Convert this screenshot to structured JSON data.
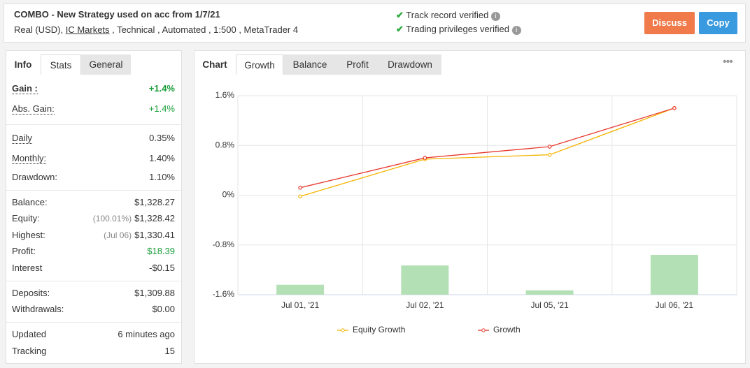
{
  "header": {
    "title": "COMBO - New Strategy used on acc from 1/7/21",
    "account": "Real (USD),",
    "broker": "IC Markets",
    "details": ", Technical , Automated , 1:500 , MetaTrader 4",
    "verified": [
      "Track record verified",
      "Trading privileges verified"
    ],
    "buttons": [
      "Discuss",
      "Copy"
    ]
  },
  "stats": {
    "tabs": [
      "Info",
      "Stats",
      "General"
    ],
    "groups": [
      {
        "rows": [
          {
            "label": "Gain :",
            "value": "+1.4%",
            "color": "#1a9e3a",
            "underline": true,
            "bold": true
          },
          {
            "label": "Abs. Gain:",
            "value": "+1.4%",
            "color": "#1a9e3a",
            "underline": true
          }
        ]
      },
      {
        "rows": [
          {
            "label": "Daily",
            "value": "0.35%",
            "underline": true
          },
          {
            "label": "Monthly:",
            "value": "1.40%",
            "underline": true
          },
          {
            "label": "Drawdown:",
            "value": "1.10%"
          }
        ]
      },
      {
        "rows": [
          {
            "label": "Balance:",
            "value": "$1,328.27"
          },
          {
            "label": "Equity:",
            "note": "(100.01%)",
            "value": "$1,328.42"
          },
          {
            "label": "Highest:",
            "note": "(Jul 06)",
            "value": "$1,330.41"
          },
          {
            "label": "Profit:",
            "value": "$18.39",
            "color": "#1a9e3a"
          },
          {
            "label": "Interest",
            "value": "-$0.15"
          }
        ]
      },
      {
        "rows": [
          {
            "label": "Deposits:",
            "value": "$1,309.88"
          },
          {
            "label": "Withdrawals:",
            "value": "$0.00"
          }
        ]
      },
      {
        "rows": [
          {
            "label": "Updated",
            "value": "6 minutes ago"
          },
          {
            "label": "Tracking",
            "value": "15"
          }
        ]
      }
    ]
  },
  "chart_panel": {
    "tabs": [
      "Chart",
      "Growth",
      "Balance",
      "Profit",
      "Drawdown"
    ]
  },
  "chart_data": {
    "type": "line",
    "categories": [
      "Jul 01, '21",
      "Jul 02, '21",
      "Jul 05, '21",
      "Jul 06, '21"
    ],
    "series": [
      {
        "name": "Equity Growth",
        "color": "#f5b400",
        "values": [
          -0.02,
          0.58,
          0.65,
          1.4
        ]
      },
      {
        "name": "Growth",
        "color": "#e8392e",
        "values": [
          0.12,
          0.6,
          0.78,
          1.4
        ]
      }
    ],
    "bars": {
      "color": "#b3e0b5",
      "values": [
        -1.44,
        -1.13,
        -1.53,
        -0.96
      ]
    },
    "ylim": [
      -1.6,
      1.6
    ],
    "yticks": [
      {
        "value": -1.6,
        "label": "-1.6%"
      },
      {
        "value": -0.8,
        "label": "-0.8%"
      },
      {
        "value": 0,
        "label": "0%"
      },
      {
        "value": 0.8,
        "label": "0.8%"
      },
      {
        "value": 1.6,
        "label": "1.6%"
      }
    ],
    "grid": true
  }
}
